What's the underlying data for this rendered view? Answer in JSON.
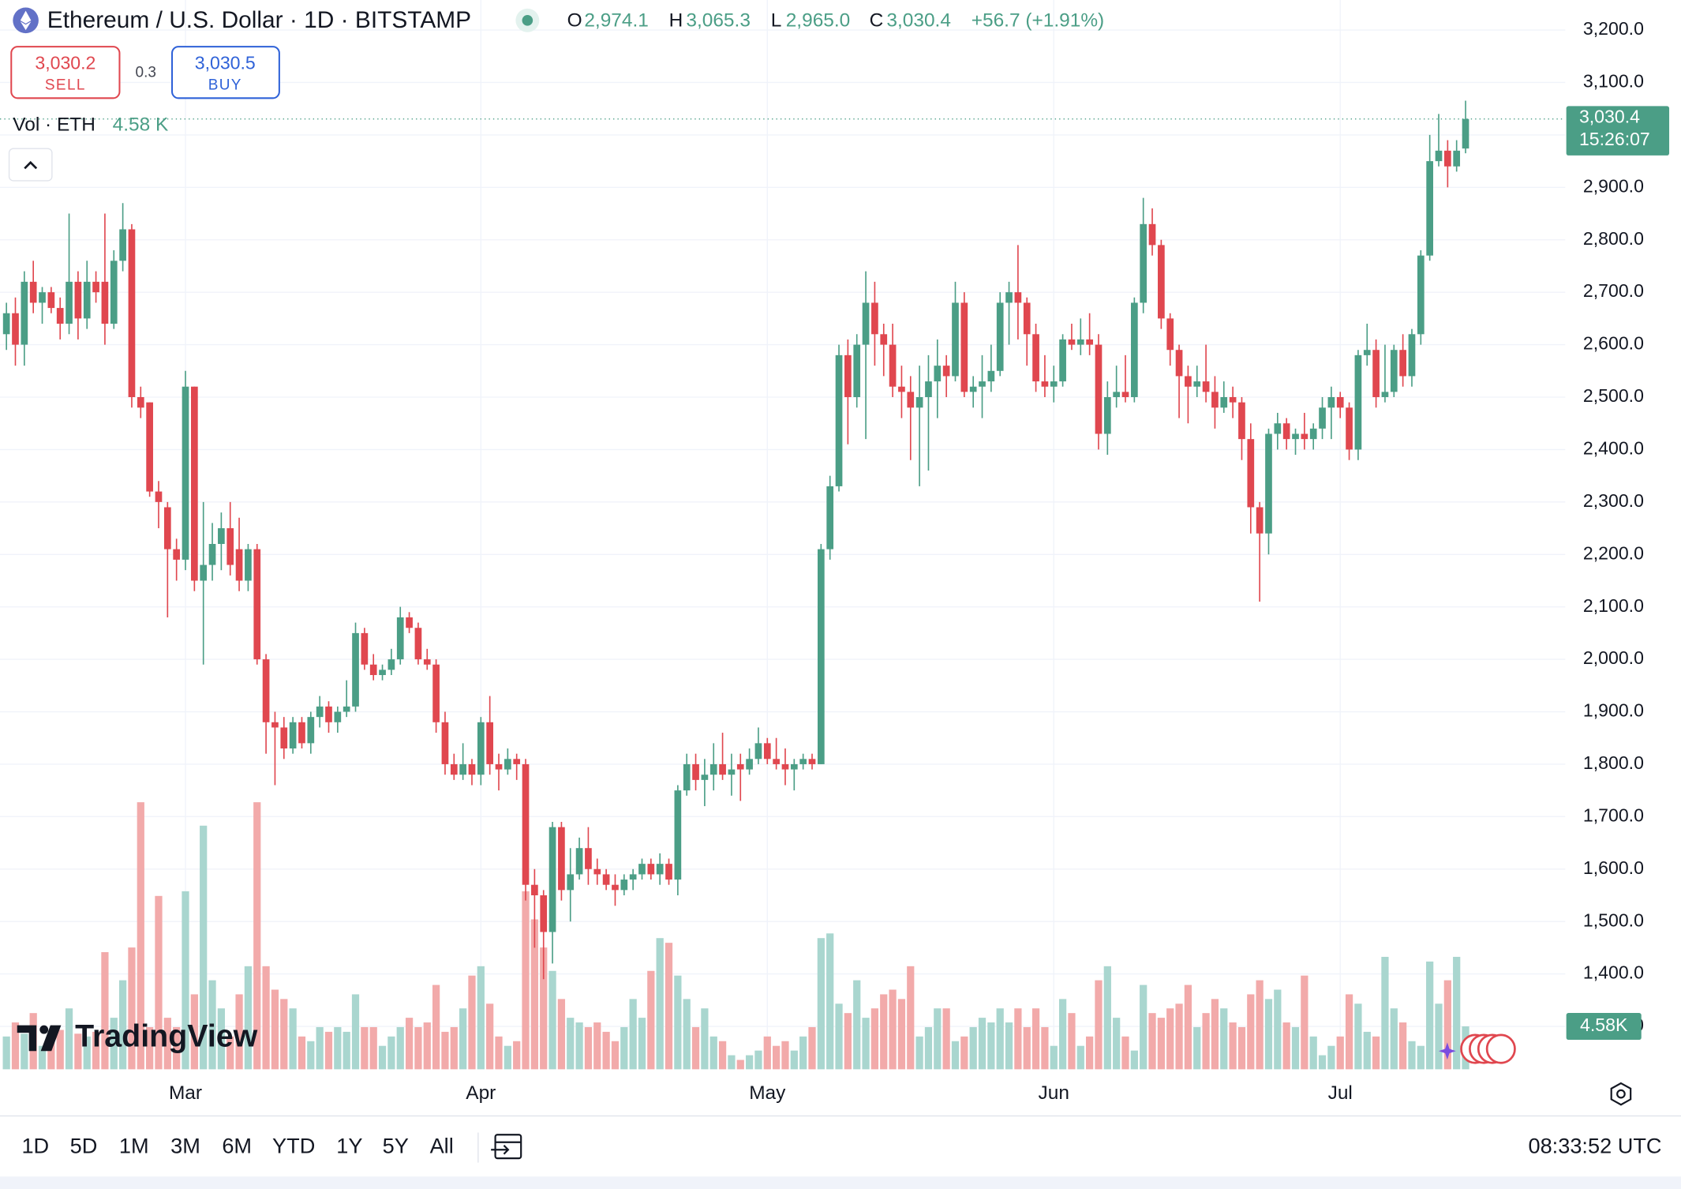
{
  "header": {
    "symbol": "Ethereum / U.S. Dollar · 1D · BITSTAMP",
    "ohlc": [
      {
        "key": "O",
        "value": "2,974.1"
      },
      {
        "key": "H",
        "value": "3,065.3"
      },
      {
        "key": "L",
        "value": "2,965.0"
      },
      {
        "key": "C",
        "value": "3,030.4"
      }
    ],
    "change": "+56.7 (+1.91%)"
  },
  "trade": {
    "sell_price": "3,030.2",
    "sell": "SELL",
    "spread": "0.3",
    "buy_price": "3,030.5",
    "buy": "BUY"
  },
  "volume_legend": {
    "label": "Vol · ETH",
    "value": "4.58 K"
  },
  "logo": "TradingView",
  "toolbar": {
    "ranges": [
      "1D",
      "5D",
      "1M",
      "3M",
      "6M",
      "YTD",
      "1Y",
      "5Y",
      "All"
    ],
    "clock": "08:33:52 UTC"
  },
  "chart_data": {
    "type": "candlestick",
    "up_color": "#4b9e86",
    "down_color": "#e0474f",
    "volume_up_color": "#a9d6cf",
    "volume_down_color": "#f2aaaa",
    "grid": true,
    "last_price_label": "3,030.4",
    "countdown": "15:26:07",
    "volume_label": "4.58K",
    "ylim": [
      1300,
      3200
    ],
    "yticks": [
      {
        "value": 3200,
        "label": "3,200.0"
      },
      {
        "value": 3100,
        "label": "3,100.0"
      },
      {
        "value": 3000,
        "label": "3,000.0"
      },
      {
        "value": 2900,
        "label": "2,900.0"
      },
      {
        "value": 2800,
        "label": "2,800.0"
      },
      {
        "value": 2700,
        "label": "2,700.0"
      },
      {
        "value": 2600,
        "label": "2,600.0"
      },
      {
        "value": 2500,
        "label": "2,500.0"
      },
      {
        "value": 2400,
        "label": "2,400.0"
      },
      {
        "value": 2300,
        "label": "2,300.0"
      },
      {
        "value": 2200,
        "label": "2,200.0"
      },
      {
        "value": 2100,
        "label": "2,100.0"
      },
      {
        "value": 2000,
        "label": "2,000.0"
      },
      {
        "value": 1900,
        "label": "1,900.0"
      },
      {
        "value": 1800,
        "label": "1,800.0"
      },
      {
        "value": 1700,
        "label": "1,700.0"
      },
      {
        "value": 1600,
        "label": "1,600.0"
      },
      {
        "value": 1500,
        "label": "1,500.0"
      },
      {
        "value": 1400,
        "label": "1,400.0"
      },
      {
        "value": 1300,
        "label": "1,300.0"
      }
    ],
    "categories": [
      null,
      null,
      null,
      null,
      null,
      null,
      null,
      null,
      null,
      null,
      null,
      null,
      null,
      null,
      null,
      null,
      null,
      null,
      null,
      null,
      "Mar",
      null,
      null,
      null,
      null,
      null,
      null,
      null,
      null,
      null,
      null,
      null,
      null,
      null,
      null,
      null,
      null,
      null,
      null,
      null,
      null,
      null,
      null,
      null,
      null,
      null,
      null,
      null,
      null,
      null,
      null,
      null,
      null,
      "Apr",
      null,
      null,
      null,
      null,
      null,
      null,
      null,
      null,
      null,
      null,
      null,
      null,
      null,
      null,
      null,
      null,
      null,
      null,
      null,
      null,
      null,
      null,
      null,
      null,
      null,
      null,
      null,
      null,
      null,
      null,
      null,
      "May",
      null,
      null,
      null,
      null,
      null,
      null,
      null,
      null,
      null,
      null,
      null,
      null,
      null,
      null,
      null,
      null,
      null,
      null,
      null,
      null,
      null,
      null,
      null,
      null,
      null,
      null,
      null,
      null,
      null,
      null,
      null,
      "Jun",
      null,
      null,
      null,
      null,
      null,
      null,
      null,
      null,
      null,
      null,
      null,
      null,
      null,
      null,
      null,
      null,
      null,
      null,
      null,
      null,
      null,
      null,
      null,
      null,
      null,
      null,
      null,
      null,
      null,
      null,
      null,
      "Jul",
      null,
      null,
      null,
      null,
      null,
      null,
      null,
      null,
      null,
      null,
      null,
      null,
      null,
      null
    ],
    "ohlc": [
      [
        2620,
        2680,
        2590,
        2660
      ],
      [
        2660,
        2690,
        2560,
        2600
      ],
      [
        2600,
        2740,
        2560,
        2720
      ],
      [
        2720,
        2760,
        2660,
        2680
      ],
      [
        2680,
        2710,
        2640,
        2700
      ],
      [
        2700,
        2710,
        2660,
        2670
      ],
      [
        2670,
        2690,
        2610,
        2640
      ],
      [
        2640,
        2850,
        2620,
        2720
      ],
      [
        2720,
        2740,
        2610,
        2650
      ],
      [
        2650,
        2760,
        2630,
        2720
      ],
      [
        2720,
        2740,
        2680,
        2700
      ],
      [
        2720,
        2850,
        2600,
        2640
      ],
      [
        2640,
        2780,
        2630,
        2760
      ],
      [
        2760,
        2870,
        2740,
        2820
      ],
      [
        2820,
        2830,
        2480,
        2500
      ],
      [
        2500,
        2520,
        2460,
        2480
      ],
      [
        2490,
        2490,
        2310,
        2320
      ],
      [
        2320,
        2340,
        2250,
        2300
      ],
      [
        2290,
        2300,
        2080,
        2210
      ],
      [
        2210,
        2230,
        2150,
        2190
      ],
      [
        2190,
        2550,
        2170,
        2520
      ],
      [
        2520,
        2520,
        2130,
        2150
      ],
      [
        2150,
        2300,
        1990,
        2180
      ],
      [
        2180,
        2260,
        2150,
        2220
      ],
      [
        2220,
        2280,
        2170,
        2250
      ],
      [
        2250,
        2300,
        2160,
        2180
      ],
      [
        2210,
        2270,
        2130,
        2150
      ],
      [
        2150,
        2220,
        2130,
        2210
      ],
      [
        2210,
        2220,
        1990,
        2000
      ],
      [
        2000,
        2010,
        1820,
        1880
      ],
      [
        1880,
        1900,
        1760,
        1870
      ],
      [
        1870,
        1890,
        1810,
        1830
      ],
      [
        1830,
        1890,
        1820,
        1880
      ],
      [
        1880,
        1890,
        1830,
        1840
      ],
      [
        1840,
        1900,
        1820,
        1890
      ],
      [
        1890,
        1930,
        1870,
        1910
      ],
      [
        1910,
        1920,
        1860,
        1880
      ],
      [
        1880,
        1910,
        1860,
        1900
      ],
      [
        1900,
        1960,
        1890,
        1910
      ],
      [
        1910,
        2070,
        1900,
        2050
      ],
      [
        2050,
        2060,
        1980,
        1990
      ],
      [
        1990,
        2010,
        1960,
        1970
      ],
      [
        1970,
        1990,
        1960,
        1980
      ],
      [
        1980,
        2020,
        1970,
        2000
      ],
      [
        2000,
        2100,
        1990,
        2080
      ],
      [
        2080,
        2090,
        2050,
        2060
      ],
      [
        2060,
        2070,
        1990,
        2000
      ],
      [
        2000,
        2020,
        1980,
        1990
      ],
      [
        1990,
        2000,
        1860,
        1880
      ],
      [
        1880,
        1900,
        1780,
        1800
      ],
      [
        1800,
        1820,
        1770,
        1780
      ],
      [
        1780,
        1840,
        1770,
        1800
      ],
      [
        1800,
        1810,
        1760,
        1780
      ],
      [
        1780,
        1890,
        1760,
        1880
      ],
      [
        1880,
        1930,
        1780,
        1800
      ],
      [
        1800,
        1820,
        1750,
        1790
      ],
      [
        1790,
        1830,
        1780,
        1810
      ],
      [
        1810,
        1820,
        1770,
        1800
      ],
      [
        1800,
        1810,
        1540,
        1570
      ],
      [
        1570,
        1600,
        1450,
        1550
      ],
      [
        1550,
        1560,
        1390,
        1480
      ],
      [
        1480,
        1690,
        1420,
        1680
      ],
      [
        1680,
        1690,
        1540,
        1560
      ],
      [
        1560,
        1640,
        1500,
        1590
      ],
      [
        1590,
        1660,
        1580,
        1640
      ],
      [
        1640,
        1680,
        1570,
        1600
      ],
      [
        1600,
        1620,
        1570,
        1590
      ],
      [
        1590,
        1600,
        1560,
        1570
      ],
      [
        1570,
        1590,
        1530,
        1560
      ],
      [
        1560,
        1590,
        1550,
        1580
      ],
      [
        1580,
        1600,
        1560,
        1590
      ],
      [
        1590,
        1620,
        1580,
        1610
      ],
      [
        1610,
        1620,
        1580,
        1590
      ],
      [
        1590,
        1630,
        1570,
        1610
      ],
      [
        1610,
        1620,
        1570,
        1580
      ],
      [
        1580,
        1760,
        1550,
        1750
      ],
      [
        1750,
        1820,
        1740,
        1800
      ],
      [
        1800,
        1820,
        1750,
        1770
      ],
      [
        1770,
        1810,
        1720,
        1780
      ],
      [
        1780,
        1840,
        1750,
        1800
      ],
      [
        1800,
        1860,
        1770,
        1780
      ],
      [
        1780,
        1820,
        1740,
        1790
      ],
      [
        1800,
        1820,
        1730,
        1790
      ],
      [
        1790,
        1830,
        1780,
        1810
      ],
      [
        1810,
        1870,
        1800,
        1840
      ],
      [
        1840,
        1850,
        1800,
        1810
      ],
      [
        1810,
        1850,
        1790,
        1800
      ],
      [
        1800,
        1830,
        1760,
        1790
      ],
      [
        1790,
        1810,
        1750,
        1800
      ],
      [
        1800,
        1820,
        1790,
        1810
      ],
      [
        1810,
        1820,
        1790,
        1800
      ],
      [
        1800,
        2220,
        1800,
        2210
      ],
      [
        2210,
        2350,
        2190,
        2330
      ],
      [
        2330,
        2600,
        2320,
        2580
      ],
      [
        2580,
        2610,
        2410,
        2500
      ],
      [
        2500,
        2620,
        2480,
        2600
      ],
      [
        2600,
        2740,
        2420,
        2680
      ],
      [
        2680,
        2720,
        2560,
        2620
      ],
      [
        2620,
        2640,
        2540,
        2600
      ],
      [
        2600,
        2640,
        2500,
        2520
      ],
      [
        2520,
        2560,
        2460,
        2510
      ],
      [
        2510,
        2540,
        2380,
        2480
      ],
      [
        2480,
        2560,
        2330,
        2500
      ],
      [
        2500,
        2580,
        2360,
        2530
      ],
      [
        2530,
        2610,
        2460,
        2560
      ],
      [
        2560,
        2580,
        2500,
        2540
      ],
      [
        2540,
        2720,
        2530,
        2680
      ],
      [
        2680,
        2700,
        2500,
        2510
      ],
      [
        2510,
        2540,
        2480,
        2520
      ],
      [
        2520,
        2580,
        2460,
        2530
      ],
      [
        2530,
        2600,
        2510,
        2550
      ],
      [
        2550,
        2700,
        2540,
        2680
      ],
      [
        2680,
        2720,
        2600,
        2700
      ],
      [
        2700,
        2790,
        2610,
        2680
      ],
      [
        2680,
        2690,
        2560,
        2620
      ],
      [
        2620,
        2640,
        2510,
        2530
      ],
      [
        2530,
        2580,
        2500,
        2520
      ],
      [
        2520,
        2560,
        2490,
        2530
      ],
      [
        2530,
        2620,
        2520,
        2610
      ],
      [
        2610,
        2640,
        2590,
        2600
      ],
      [
        2600,
        2650,
        2580,
        2610
      ],
      [
        2610,
        2660,
        2580,
        2600
      ],
      [
        2600,
        2620,
        2400,
        2430
      ],
      [
        2430,
        2530,
        2390,
        2500
      ],
      [
        2500,
        2560,
        2480,
        2510
      ],
      [
        2510,
        2580,
        2490,
        2500
      ],
      [
        2500,
        2690,
        2490,
        2680
      ],
      [
        2680,
        2880,
        2660,
        2830
      ],
      [
        2830,
        2860,
        2770,
        2790
      ],
      [
        2790,
        2800,
        2630,
        2650
      ],
      [
        2650,
        2660,
        2560,
        2590
      ],
      [
        2590,
        2600,
        2460,
        2540
      ],
      [
        2540,
        2560,
        2450,
        2520
      ],
      [
        2520,
        2560,
        2500,
        2530
      ],
      [
        2530,
        2600,
        2490,
        2510
      ],
      [
        2510,
        2540,
        2440,
        2480
      ],
      [
        2480,
        2530,
        2470,
        2500
      ],
      [
        2500,
        2520,
        2460,
        2490
      ],
      [
        2490,
        2500,
        2380,
        2420
      ],
      [
        2420,
        2450,
        2240,
        2290
      ],
      [
        2290,
        2300,
        2110,
        2240
      ],
      [
        2240,
        2440,
        2200,
        2430
      ],
      [
        2430,
        2470,
        2400,
        2450
      ],
      [
        2450,
        2460,
        2400,
        2420
      ],
      [
        2420,
        2440,
        2390,
        2430
      ],
      [
        2430,
        2470,
        2400,
        2420
      ],
      [
        2420,
        2450,
        2400,
        2440
      ],
      [
        2440,
        2500,
        2420,
        2480
      ],
      [
        2480,
        2520,
        2420,
        2500
      ],
      [
        2500,
        2510,
        2460,
        2480
      ],
      [
        2480,
        2490,
        2380,
        2400
      ],
      [
        2400,
        2590,
        2380,
        2580
      ],
      [
        2580,
        2640,
        2560,
        2590
      ],
      [
        2590,
        2610,
        2480,
        2500
      ],
      [
        2500,
        2600,
        2490,
        2510
      ],
      [
        2510,
        2600,
        2500,
        2590
      ],
      [
        2590,
        2620,
        2520,
        2540
      ],
      [
        2540,
        2630,
        2520,
        2620
      ],
      [
        2620,
        2780,
        2600,
        2770
      ],
      [
        2770,
        3000,
        2760,
        2950
      ],
      [
        2950,
        3040,
        2940,
        2970
      ],
      [
        2970,
        2990,
        2900,
        2940
      ],
      [
        2940,
        2990,
        2930,
        2970
      ],
      [
        2974.1,
        3065.3,
        2965,
        3030.4
      ]
    ],
    "volume": [
      3500,
      5000,
      3800,
      6000,
      2500,
      3000,
      4200,
      6500,
      3800,
      3500,
      4000,
      12500,
      5500,
      9500,
      13000,
      28500,
      4500,
      18500,
      5500,
      4500,
      19000,
      8000,
      26000,
      9500,
      6500,
      3500,
      8000,
      11000,
      28500,
      11000,
      8500,
      7500,
      6500,
      3500,
      3000,
      4500,
      4000,
      4500,
      4000,
      8000,
      4500,
      4500,
      2500,
      3500,
      4500,
      5500,
      4500,
      5000,
      9000,
      4000,
      4500,
      6500,
      10000,
      11000,
      7000,
      3500,
      2500,
      3000,
      19000,
      16000,
      13000,
      10500,
      7500,
      5500,
      5000,
      4500,
      5000,
      4000,
      3000,
      4500,
      7500,
      5500,
      10500,
      14000,
      13500,
      10000,
      7500,
      4500,
      6500,
      3500,
      3000,
      1500,
      1000,
      1500,
      2000,
      3500,
      2500,
      3000,
      2000,
      3500,
      4500,
      14000,
      14500,
      7000,
      6000,
      9500,
      5500,
      6500,
      8000,
      8500,
      7500,
      11000,
      3500,
      4500,
      6500,
      6500,
      3000,
      3500,
      4500,
      5500,
      5000,
      6500,
      5000,
      6500,
      4500,
      6500,
      4500,
      2500,
      7500,
      6000,
      2500,
      3500,
      9500,
      11000,
      5500,
      3500,
      2000,
      9000,
      6000,
      5500,
      6500,
      7000,
      9000,
      4500,
      6000,
      7500,
      6500,
      5000,
      4500,
      8000,
      9500,
      7500,
      8500,
      5000,
      4500,
      10000,
      3500,
      1500,
      2500,
      3500,
      8000,
      7000,
      4000,
      3500,
      12000,
      6500,
      5000,
      3000,
      2500,
      11500,
      7000,
      9500,
      12000,
      4580
    ]
  }
}
